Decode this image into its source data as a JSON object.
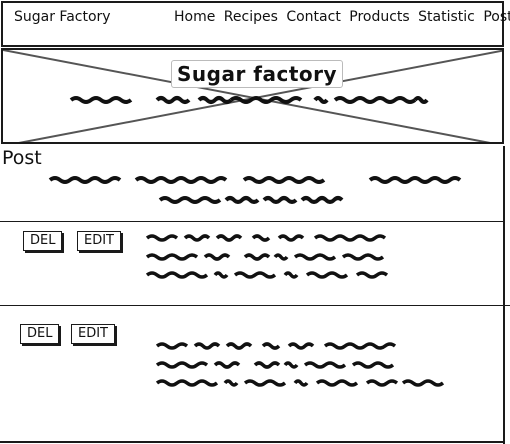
{
  "navbar": {
    "brand": "Sugar Factory",
    "links": [
      "Home",
      "Recipes",
      "Contact",
      "Products",
      "Statistic",
      "Post"
    ]
  },
  "hero": {
    "title": "Sugar factory",
    "image_icon": "image-placeholder-icon"
  },
  "post_section": {
    "heading": "Post"
  },
  "entries": [
    {
      "delete_label": "DEL",
      "edit_label": "EDIT"
    },
    {
      "delete_label": "DEL",
      "edit_label": "EDIT"
    }
  ]
}
